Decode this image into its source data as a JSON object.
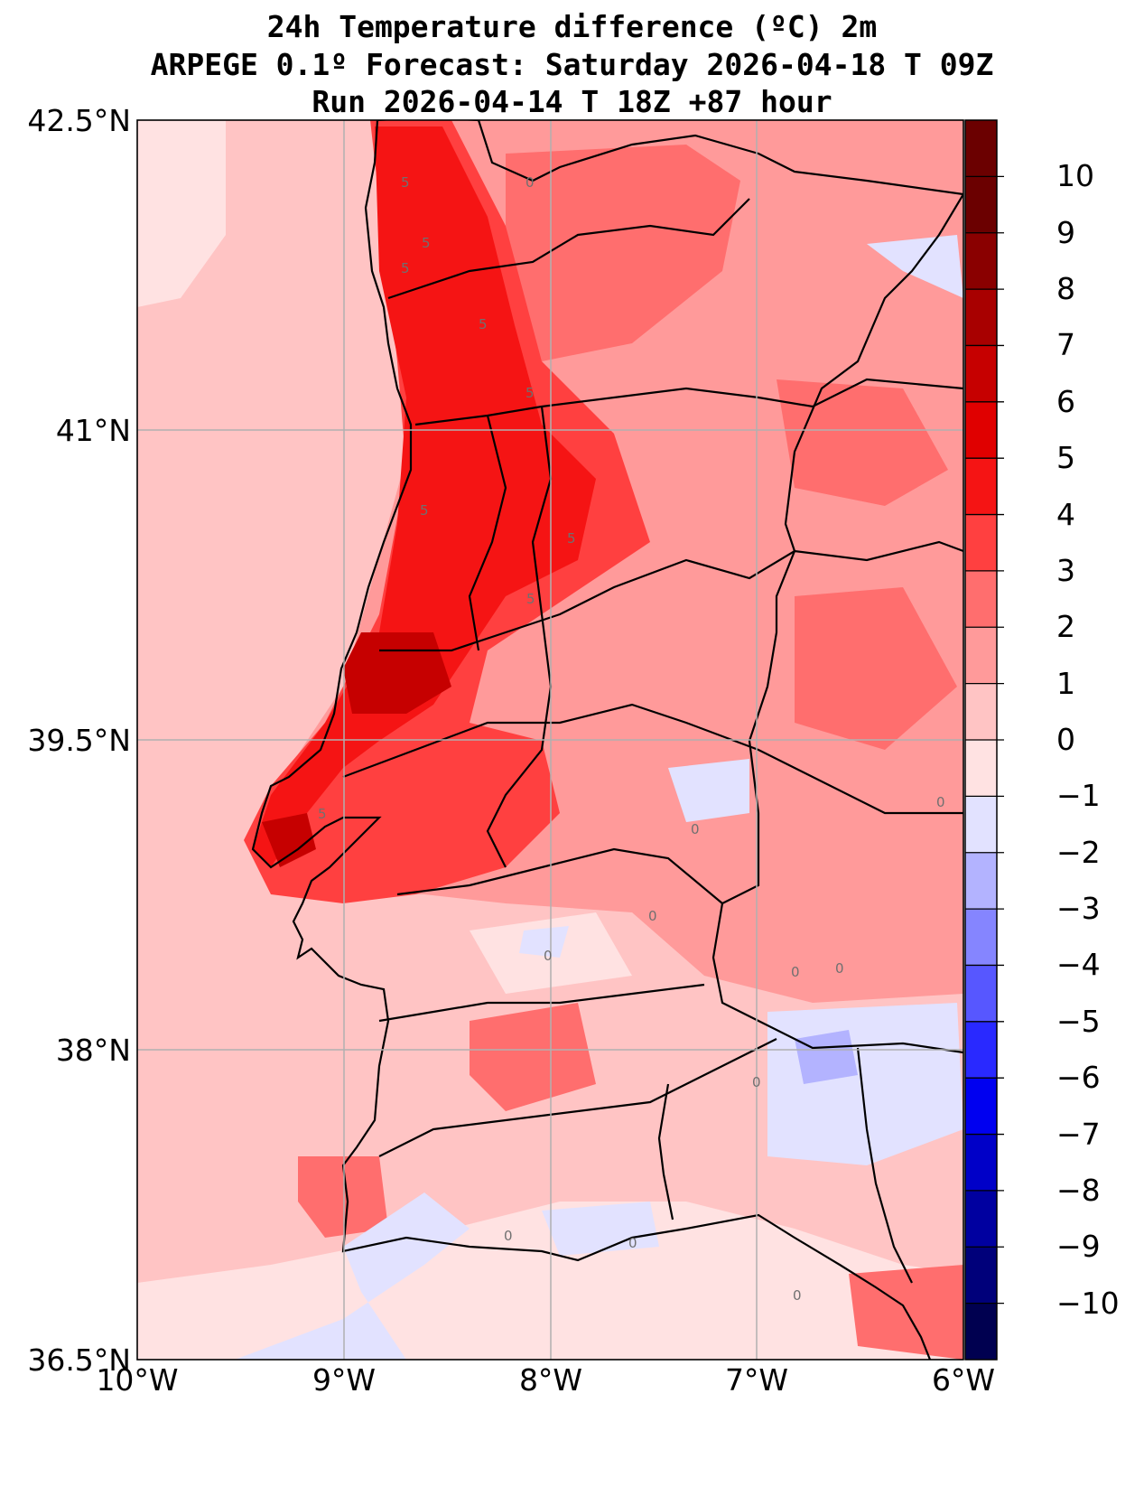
{
  "title": {
    "line1": "24h Temperature difference (ºC) 2m",
    "line2": "ARPEGE 0.1º Forecast: Saturday 2026-04-18 T 09Z",
    "line3": "Run 2026-04-14 T 18Z +87 hour"
  },
  "map": {
    "lon_range": [
      -10,
      -6
    ],
    "lat_range": [
      36.5,
      42.5
    ],
    "grid": true,
    "lat_ticks": [
      "42.5°N",
      "41°N",
      "39.5°N",
      "38°N",
      "36.5°N"
    ],
    "lon_ticks": [
      "10°W",
      "9°W",
      "8°W",
      "7°W",
      "6°W"
    ],
    "contour_labels": [
      "5",
      "5",
      "5",
      "5",
      "5",
      "5",
      "5",
      "5",
      "5",
      "0",
      "0",
      "0",
      "0",
      "0",
      "0",
      "0",
      "0",
      "0",
      "0",
      "0"
    ]
  },
  "colorbar": {
    "ticks": [
      "10",
      "9",
      "8",
      "7",
      "6",
      "5",
      "4",
      "3",
      "2",
      "1",
      "0",
      "−1",
      "−2",
      "−3",
      "−4",
      "−5",
      "−6",
      "−7",
      "−8",
      "−9",
      "−10"
    ],
    "colors": [
      "#6b0000",
      "#8a0000",
      "#a80000",
      "#c60000",
      "#e00000",
      "#f51414",
      "#ff4040",
      "#ff6e6e",
      "#ff9a9a",
      "#ffc4c4",
      "#ffe2e2",
      "#e2e2ff",
      "#b3b3ff",
      "#8585ff",
      "#5757ff",
      "#2929ff",
      "#0000f0",
      "#0000c8",
      "#0000a0",
      "#00007a",
      "#000050"
    ]
  }
}
